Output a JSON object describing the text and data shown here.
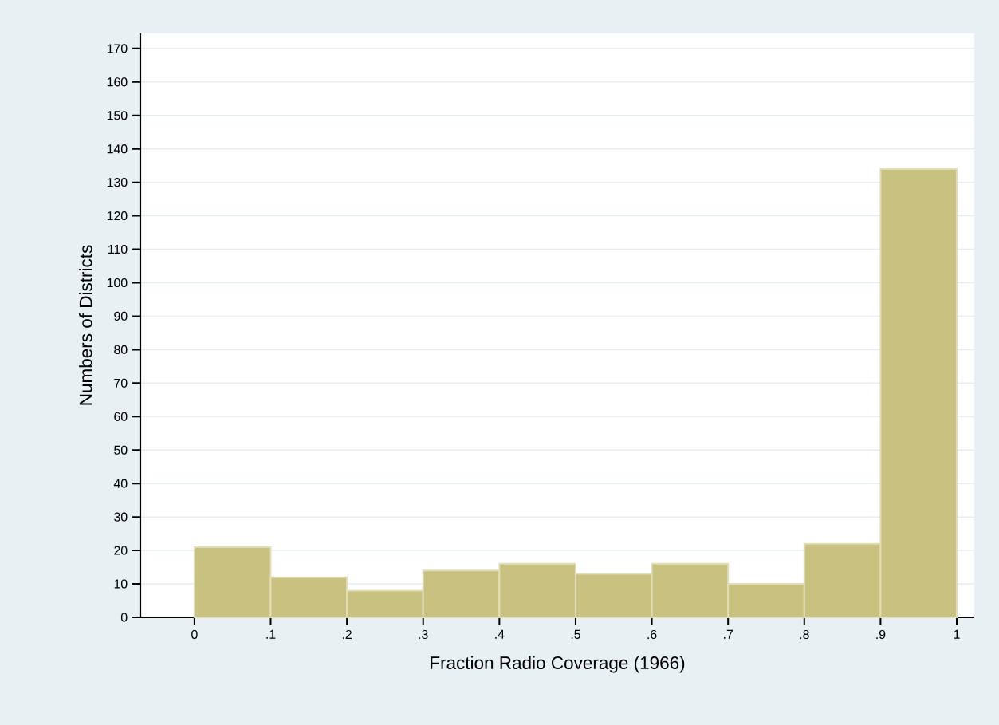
{
  "chart_data": {
    "type": "histogram",
    "xlabel": "Fraction Radio Coverage (1966)",
    "ylabel": "Numbers of Districts",
    "bins": [
      0,
      0.1,
      0.2,
      0.3,
      0.4,
      0.5,
      0.6,
      0.7,
      0.8,
      0.9,
      1
    ],
    "values": [
      21,
      12,
      8,
      14,
      16,
      13,
      16,
      10,
      22,
      134
    ],
    "color": "#c9c180",
    "xlim": [
      -0.071,
      1.023
    ],
    "ylim": [
      0,
      174.5
    ],
    "xticks": [
      0,
      {
        "value": 0.1,
        "label": ".1"
      },
      {
        "value": 0.2,
        "label": ".2"
      },
      {
        "value": 0.3,
        "label": ".3"
      },
      {
        "value": 0.4,
        "label": ".4"
      },
      {
        "value": 0.5,
        "label": ".5"
      },
      {
        "value": 0.6,
        "label": ".6"
      },
      {
        "value": 0.7,
        "label": ".7"
      },
      {
        "value": 0.8,
        "label": ".8"
      },
      {
        "value": 0.9,
        "label": ".9"
      },
      1
    ],
    "yticks": [
      0,
      10,
      20,
      30,
      40,
      50,
      60,
      70,
      80,
      90,
      100,
      110,
      120,
      130,
      140,
      150,
      160,
      170
    ],
    "grid": "y"
  }
}
